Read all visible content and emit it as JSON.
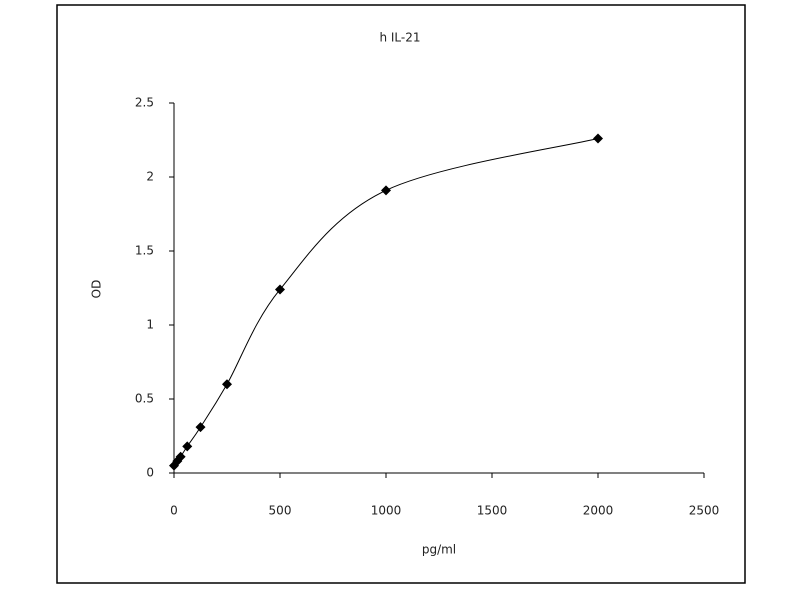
{
  "chart_data": {
    "type": "line",
    "title": "h IL-21",
    "x_label": "pg/ml",
    "y_label": "OD",
    "x": [
      0,
      15.6,
      31.25,
      62.5,
      125,
      250,
      500,
      1000,
      2000
    ],
    "series": [
      {
        "name": "OD",
        "color": "#000000",
        "values": [
          0.05,
          0.08,
          0.11,
          0.18,
          0.31,
          0.6,
          1.24,
          1.91,
          2.26
        ]
      }
    ],
    "xlim": [
      0,
      2500
    ],
    "xticks": [
      0,
      500,
      1000,
      1500,
      2000,
      2500
    ],
    "ylim": [
      0,
      2.5
    ],
    "yticks": [
      0,
      0.5,
      1,
      1.5,
      2,
      2.5
    ],
    "grid": false,
    "smooth": true,
    "marker": "diamond"
  }
}
